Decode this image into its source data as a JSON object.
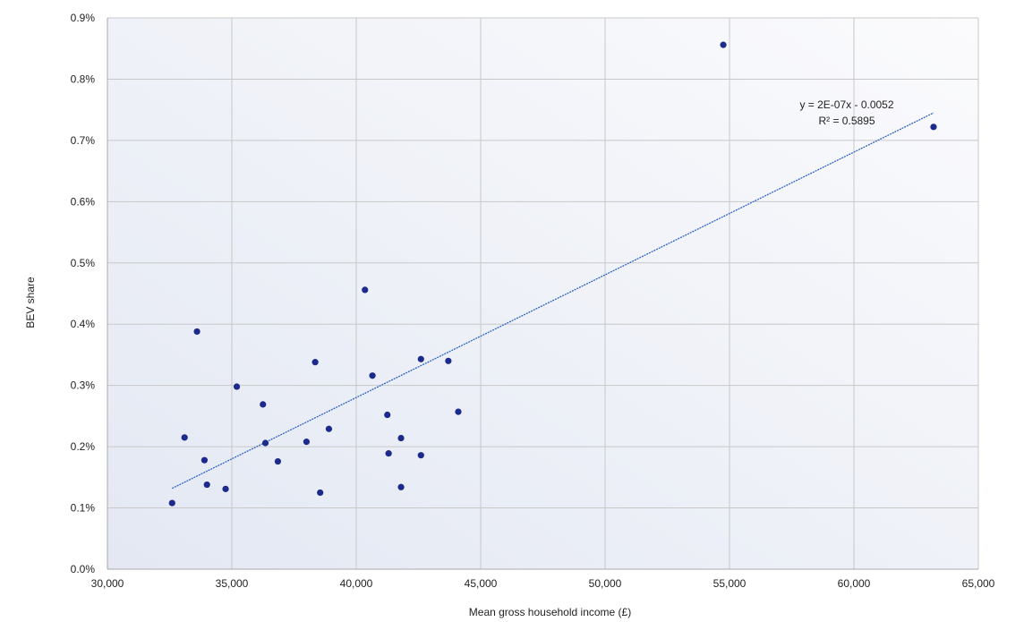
{
  "chart_data": {
    "type": "scatter",
    "xlabel": "Mean gross household income (£)",
    "ylabel": "BEV share",
    "xlim": [
      30000,
      65000
    ],
    "ylim": [
      0.0,
      0.9
    ],
    "x_ticks": [
      30000,
      35000,
      40000,
      45000,
      50000,
      55000,
      60000,
      65000
    ],
    "x_tick_labels": [
      "30,000",
      "35,000",
      "40,000",
      "45,000",
      "50,000",
      "55,000",
      "60,000",
      "65,000"
    ],
    "y_ticks": [
      0.0,
      0.1,
      0.2,
      0.3,
      0.4,
      0.5,
      0.6,
      0.7,
      0.8,
      0.9
    ],
    "y_tick_labels": [
      "0.0%",
      "0.1%",
      "0.2%",
      "0.3%",
      "0.4%",
      "0.5%",
      "0.6%",
      "0.7%",
      "0.8%",
      "0.9%"
    ],
    "grid": true,
    "points": [
      {
        "x": 32600,
        "y": 0.108
      },
      {
        "x": 33100,
        "y": 0.215
      },
      {
        "x": 33600,
        "y": 0.388
      },
      {
        "x": 33900,
        "y": 0.178
      },
      {
        "x": 34000,
        "y": 0.138
      },
      {
        "x": 34750,
        "y": 0.131
      },
      {
        "x": 35200,
        "y": 0.298
      },
      {
        "x": 36250,
        "y": 0.269
      },
      {
        "x": 36350,
        "y": 0.206
      },
      {
        "x": 36850,
        "y": 0.176
      },
      {
        "x": 38000,
        "y": 0.208
      },
      {
        "x": 38350,
        "y": 0.338
      },
      {
        "x": 38550,
        "y": 0.125
      },
      {
        "x": 38900,
        "y": 0.229
      },
      {
        "x": 40350,
        "y": 0.456
      },
      {
        "x": 40650,
        "y": 0.316
      },
      {
        "x": 41250,
        "y": 0.252
      },
      {
        "x": 41300,
        "y": 0.189
      },
      {
        "x": 41800,
        "y": 0.214
      },
      {
        "x": 41800,
        "y": 0.134
      },
      {
        "x": 42600,
        "y": 0.343
      },
      {
        "x": 42600,
        "y": 0.186
      },
      {
        "x": 43700,
        "y": 0.34
      },
      {
        "x": 44100,
        "y": 0.257
      },
      {
        "x": 54750,
        "y": 0.856
      },
      {
        "x": 63200,
        "y": 0.722
      }
    ],
    "trendline": {
      "x": [
        32600,
        63200
      ],
      "y": [
        0.132,
        0.745
      ],
      "equation": "y = 2E-07x - 0.0052",
      "r_squared": "R² = 0.5895"
    },
    "colors": {
      "points": "#1c2a8c",
      "trendline": "#2f63c4",
      "grid": "#c8c8c8",
      "plot_bg_from": "#e3e8f3",
      "plot_bg_to": "#fbfbfd"
    }
  }
}
